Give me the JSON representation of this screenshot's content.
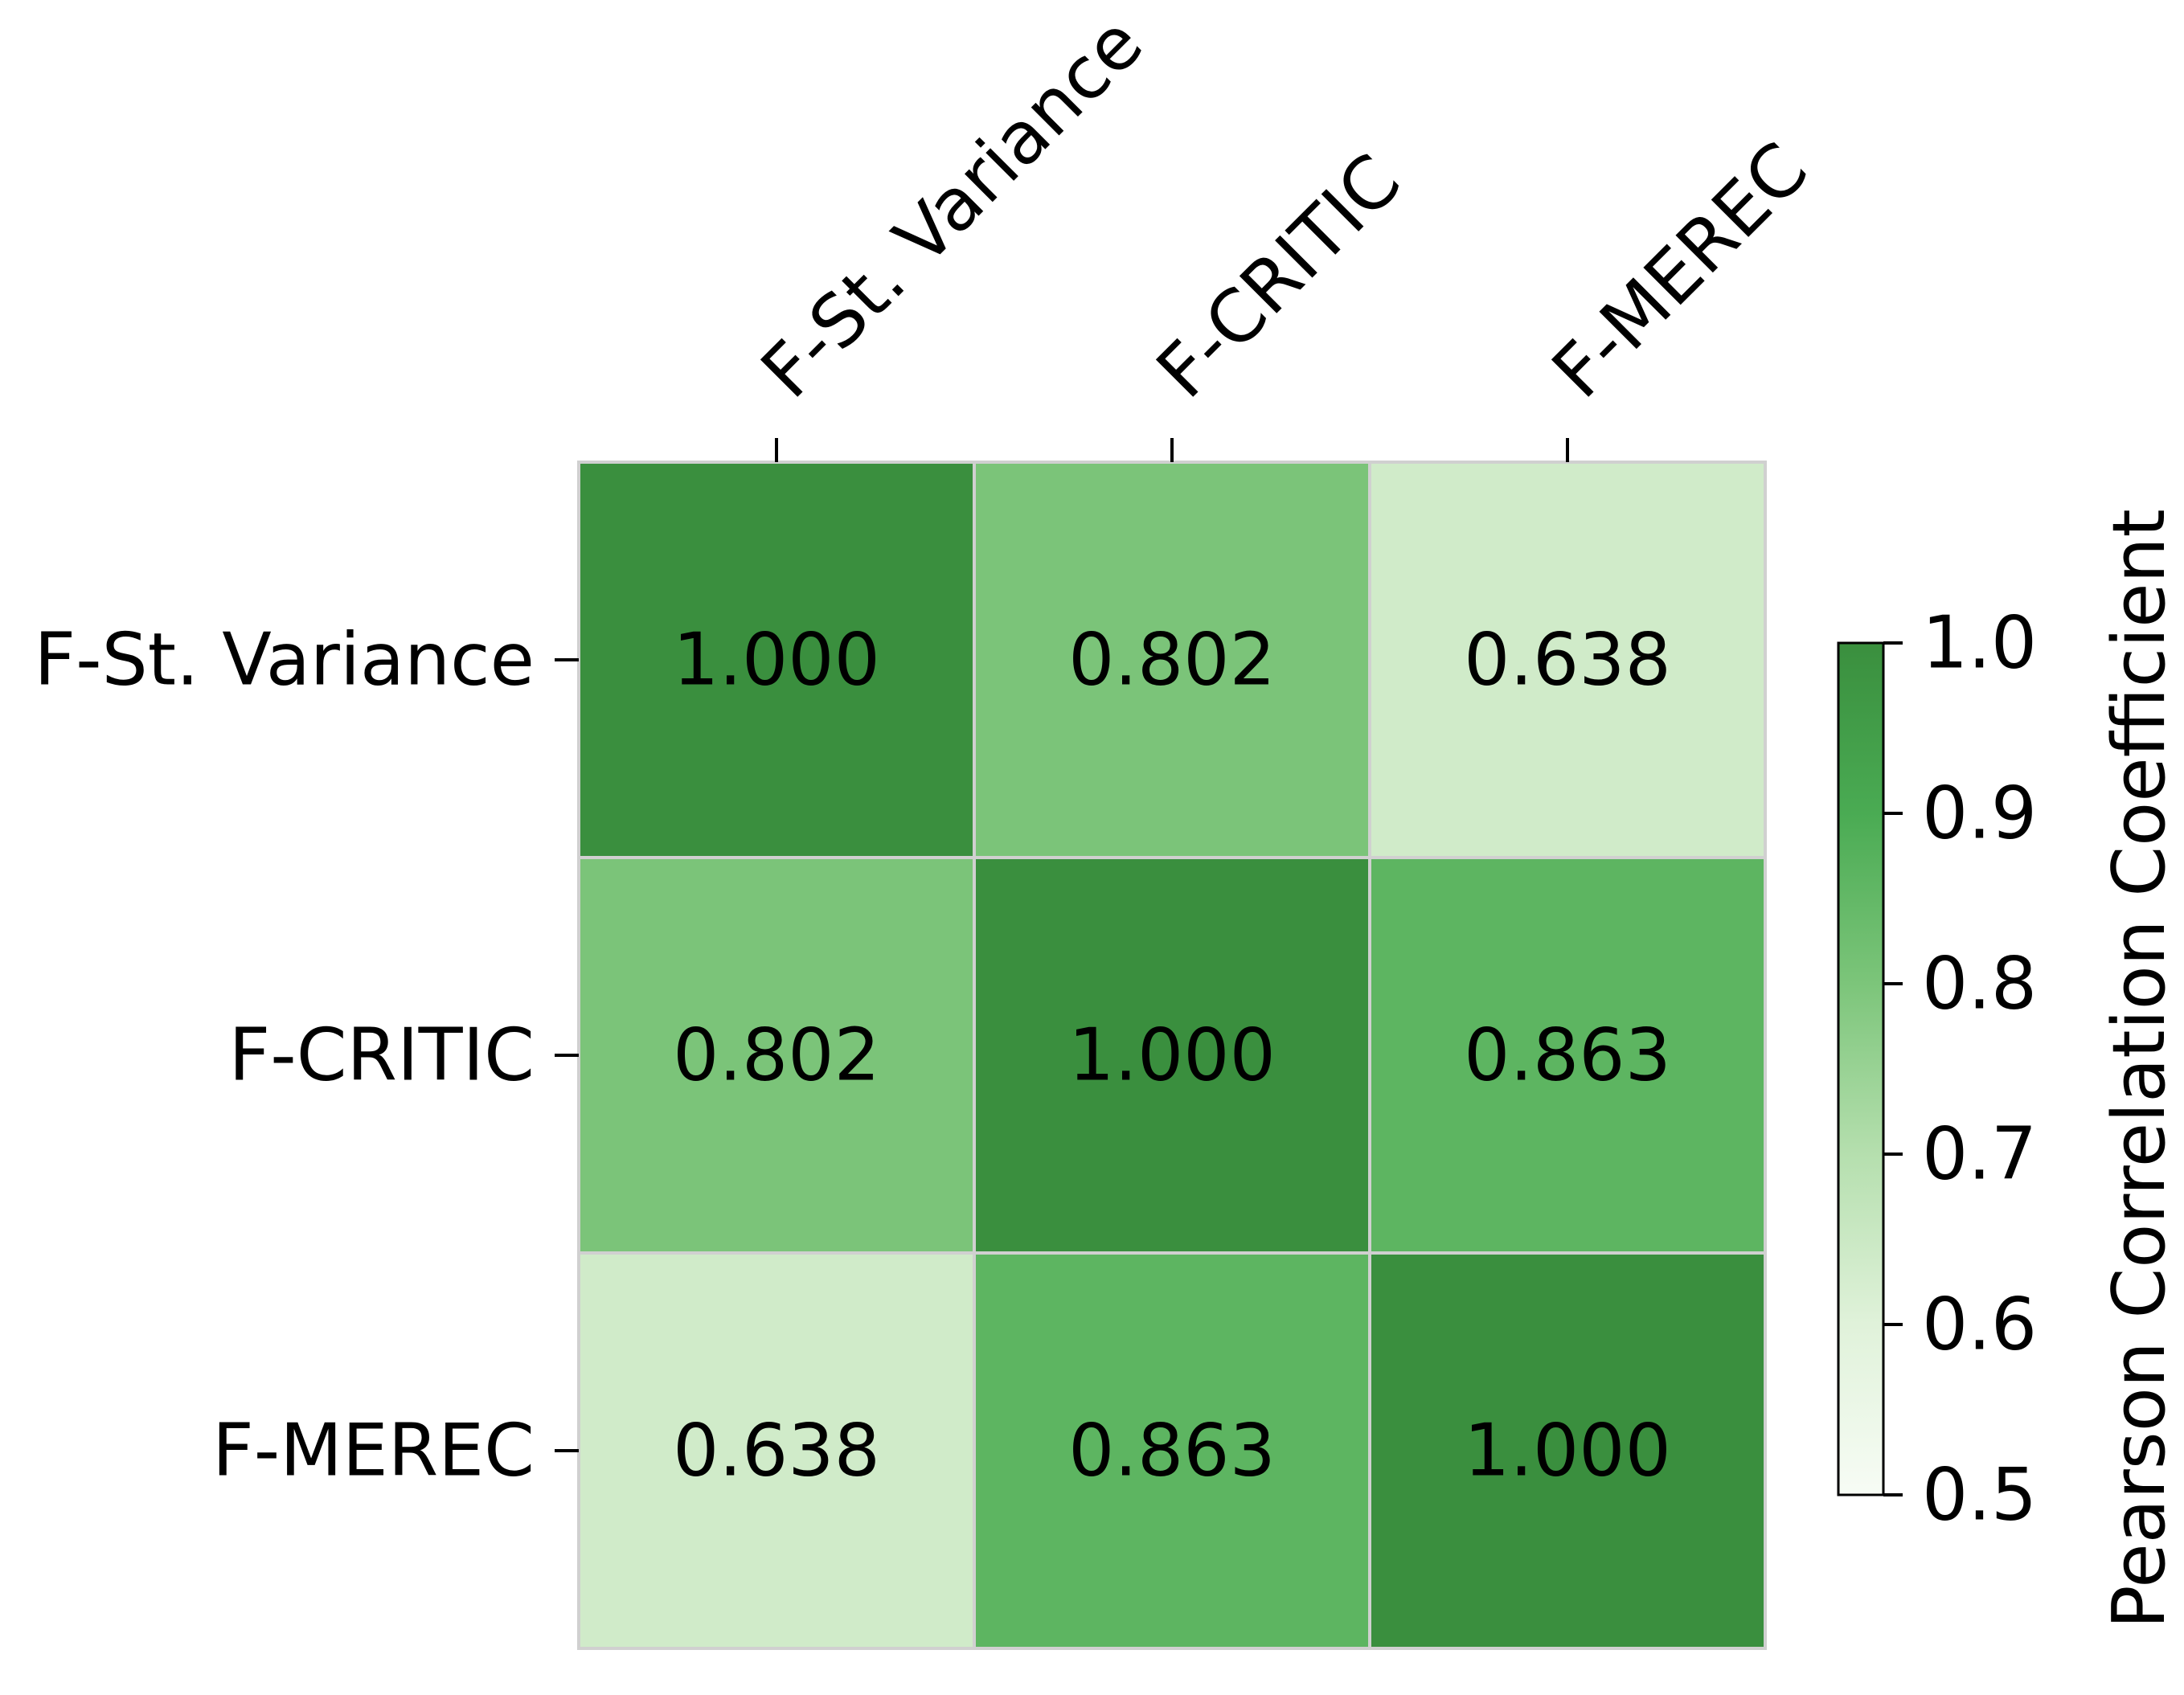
{
  "chart_data": {
    "type": "heatmap",
    "title": "",
    "x_labels": [
      "F-St. Variance",
      "F-CRITIC",
      "F-MEREC"
    ],
    "y_labels": [
      "F-St. Variance",
      "F-CRITIC",
      "F-MEREC"
    ],
    "values": [
      [
        1.0,
        0.802,
        0.638
      ],
      [
        0.802,
        1.0,
        0.863
      ],
      [
        0.638,
        0.863,
        1.0
      ]
    ],
    "cell_labels": [
      [
        "1.000",
        "0.802",
        "0.638"
      ],
      [
        "0.802",
        "1.000",
        "0.863"
      ],
      [
        "0.638",
        "0.863",
        "1.000"
      ]
    ],
    "x_axis_position": "top",
    "colorbar": {
      "label": "Pearson Correlation Coefficient",
      "range": [
        0.5,
        1.0
      ],
      "ticks": [
        0.5,
        0.6,
        0.7,
        0.8,
        0.9,
        1.0
      ],
      "tick_labels": [
        "0.5",
        "0.6",
        "0.7",
        "0.8",
        "0.9",
        "1.0"
      ],
      "colormap": "Greens",
      "color_min": "#f7fcf5",
      "color_max": "#3a8f3e"
    },
    "colors": {
      "cell_border": "#d0d0d0"
    }
  }
}
